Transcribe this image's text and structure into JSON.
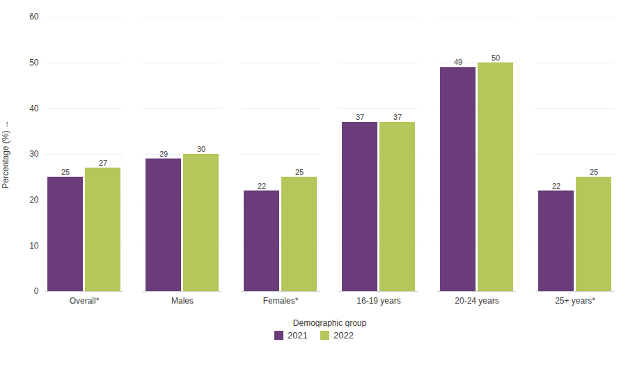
{
  "chart_data": {
    "type": "bar",
    "categories": [
      "Overall*",
      "Males",
      "Females*",
      "16-19 years",
      "20-24 years",
      "25+ years*"
    ],
    "series": [
      {
        "name": "2021",
        "color": "#6a3d7a",
        "values": [
          25,
          29,
          22,
          37,
          49,
          22
        ]
      },
      {
        "name": "2022",
        "color": "#b5c65a",
        "values": [
          27,
          30,
          25,
          37,
          50,
          25
        ]
      }
    ],
    "xlabel": "Demographic group",
    "ylabel": "Percentage (%)",
    "ylim": [
      0,
      60
    ],
    "yticks": [
      0,
      10,
      20,
      30,
      40,
      50,
      60
    ],
    "grid": true,
    "legend": "bottom",
    "data_labels": true
  }
}
